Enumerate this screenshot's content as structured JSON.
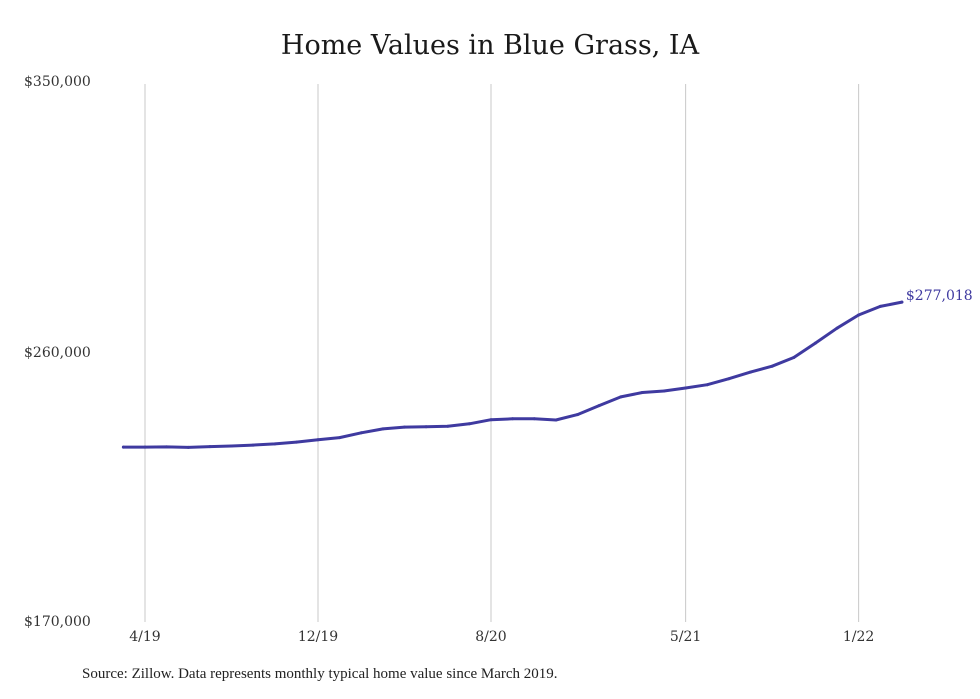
{
  "chart_data": {
    "type": "line",
    "title": "Home Values in Blue Grass, IA",
    "source": "Source: Zillow. Data represents monthly typical home value since March 2019.",
    "ylim": [
      170000,
      350000
    ],
    "y_ticks": [
      "$350,000",
      "$260,000",
      "$170,000"
    ],
    "x_ticks": [
      "4/19",
      "12/19",
      "8/20",
      "5/21",
      "1/22"
    ],
    "series": [
      {
        "color": "#3f3aa0",
        "end_label": "$277,018",
        "points": [
          {
            "x": "2019-03",
            "y": 228500
          },
          {
            "x": "2019-04",
            "y": 228500
          },
          {
            "x": "2019-05",
            "y": 228600
          },
          {
            "x": "2019-06",
            "y": 228400
          },
          {
            "x": "2019-07",
            "y": 228700
          },
          {
            "x": "2019-08",
            "y": 228900
          },
          {
            "x": "2019-09",
            "y": 229200
          },
          {
            "x": "2019-10",
            "y": 229600
          },
          {
            "x": "2019-11",
            "y": 230200
          },
          {
            "x": "2019-12",
            "y": 231000
          },
          {
            "x": "2020-01",
            "y": 231700
          },
          {
            "x": "2020-02",
            "y": 233300
          },
          {
            "x": "2020-03",
            "y": 234600
          },
          {
            "x": "2020-04",
            "y": 235200
          },
          {
            "x": "2020-05",
            "y": 235300
          },
          {
            "x": "2020-06",
            "y": 235500
          },
          {
            "x": "2020-07",
            "y": 236300
          },
          {
            "x": "2020-08",
            "y": 237700
          },
          {
            "x": "2020-09",
            "y": 238000
          },
          {
            "x": "2020-10",
            "y": 238000
          },
          {
            "x": "2020-11",
            "y": 237600
          },
          {
            "x": "2020-12",
            "y": 239400
          },
          {
            "x": "2021-01",
            "y": 242400
          },
          {
            "x": "2021-02",
            "y": 245300
          },
          {
            "x": "2021-03",
            "y": 246800
          },
          {
            "x": "2021-04",
            "y": 247300
          },
          {
            "x": "2021-05",
            "y": 248300
          },
          {
            "x": "2021-06",
            "y": 249400
          },
          {
            "x": "2021-07",
            "y": 251400
          },
          {
            "x": "2021-08",
            "y": 253600
          },
          {
            "x": "2021-09",
            "y": 255600
          },
          {
            "x": "2021-10",
            "y": 258500
          },
          {
            "x": "2021-11",
            "y": 263300
          },
          {
            "x": "2021-12",
            "y": 268300
          },
          {
            "x": "2022-01",
            "y": 272700
          },
          {
            "x": "2022-02",
            "y": 275600
          },
          {
            "x": "2022-03",
            "y": 277018
          }
        ]
      }
    ],
    "grid": "vertical"
  }
}
